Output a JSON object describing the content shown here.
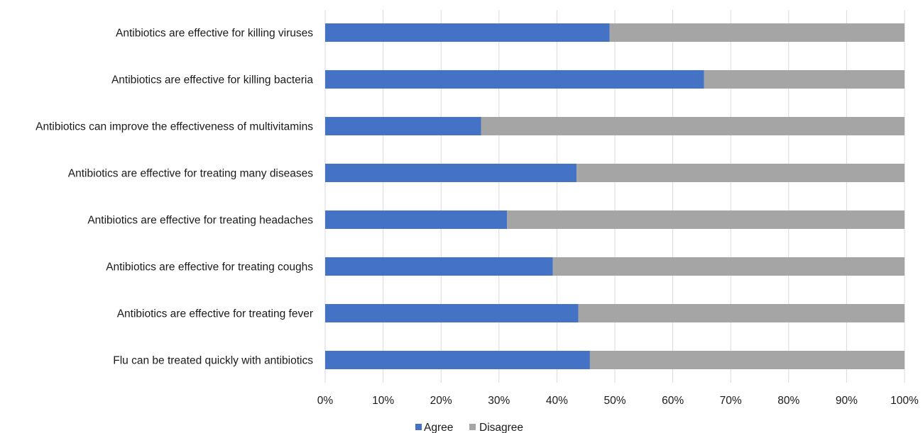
{
  "chart_data": {
    "type": "bar",
    "orientation": "horizontal",
    "stacked": "percent",
    "categories": [
      "Antibiotics are effective for killing viruses",
      "Antibiotics are effective for killing bacteria",
      "Antibiotics can improve the effectiveness of multivitamins",
      "Antibiotics are effective for treating many diseases",
      "Antibiotics are effective for treating headaches",
      "Antibiotics are effective for treating coughs",
      "Antibiotics are effective for treating fever",
      "Flu can be treated quickly with antibiotics"
    ],
    "series": [
      {
        "name": "Agree",
        "color": "#4472c4",
        "values": [
          49.1,
          65.4,
          26.9,
          43.4,
          31.4,
          39.3,
          43.7,
          45.7
        ]
      },
      {
        "name": "Disagree",
        "color": "#a5a5a5",
        "values": [
          50.9,
          34.6,
          73.1,
          56.6,
          68.6,
          60.7,
          56.3,
          54.3
        ]
      }
    ],
    "xlim": [
      0,
      100
    ],
    "x_ticks": [
      "0%",
      "10%",
      "20%",
      "30%",
      "40%",
      "50%",
      "60%",
      "70%",
      "80%",
      "90%",
      "100%"
    ],
    "grid": true,
    "legend_position": "bottom",
    "title": "",
    "xlabel": "",
    "ylabel": ""
  }
}
